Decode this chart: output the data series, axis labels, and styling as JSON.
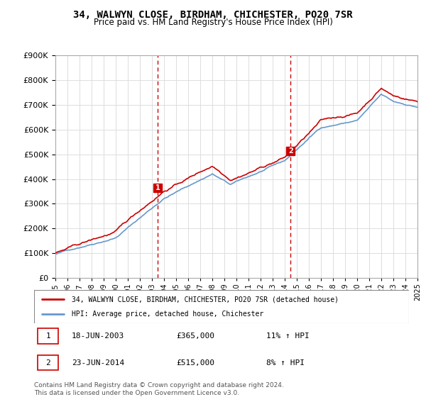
{
  "title": "34, WALWYN CLOSE, BIRDHAM, CHICHESTER, PO20 7SR",
  "subtitle": "Price paid vs. HM Land Registry's House Price Index (HPI)",
  "sale1_date": "2003-06-18",
  "sale1_label": "18-JUN-2003",
  "sale1_price": 365000,
  "sale1_hpi": "11% ↑ HPI",
  "sale2_date": "2014-06-23",
  "sale2_label": "23-JUN-2014",
  "sale2_price": 515000,
  "sale2_hpi": "8% ↑ HPI",
  "legend_line1": "34, WALWYN CLOSE, BIRDHAM, CHICHESTER, PO20 7SR (detached house)",
  "legend_line2": "HPI: Average price, detached house, Chichester",
  "footer1": "Contains HM Land Registry data © Crown copyright and database right 2024.",
  "footer2": "This data is licensed under the Open Government Licence v3.0.",
  "price_line_color": "#cc0000",
  "hpi_line_color": "#6699cc",
  "marker1_color": "#cc0000",
  "marker2_color": "#cc0000",
  "vline_color": "#cc0000",
  "ylim_min": 0,
  "ylim_max": 900000,
  "sale1_x": 2003.46,
  "sale2_x": 2014.48
}
